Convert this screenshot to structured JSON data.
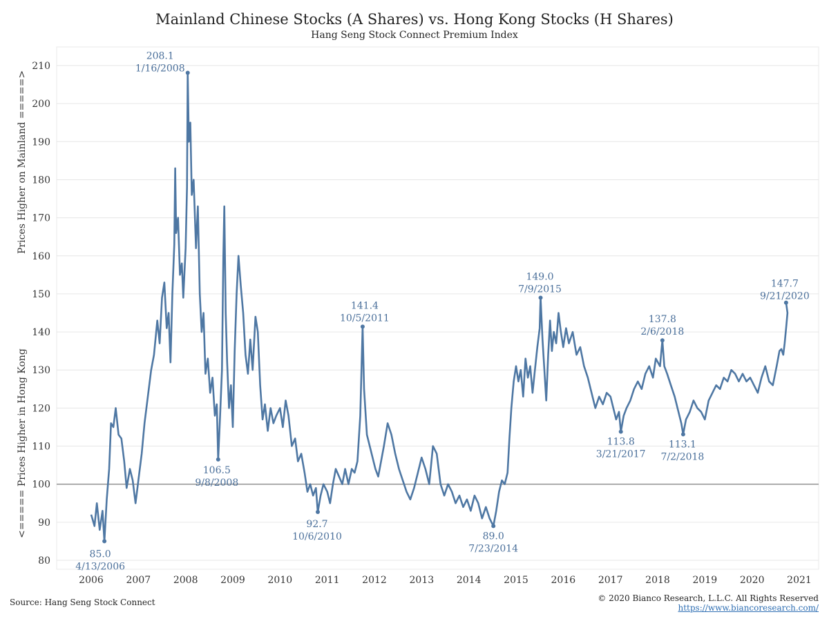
{
  "header": {
    "title": "Mainland Chinese Stocks (A Shares)  vs. Hong Kong Stocks (H Shares)",
    "subtitle": "Hang Seng Stock Connect Premium Index"
  },
  "footer": {
    "source": "Source: Hang Seng Stock Connect",
    "copyright": "© 2020 Bianco Research, L.L.C. All Rights Reserved",
    "url": "https://www.biancoresearch.com/"
  },
  "colors": {
    "series": "#4e77a3",
    "reference_line": "#888888",
    "grid": "#e6e6e6",
    "annotation": "#4a6f9a"
  },
  "chart_data": {
    "type": "line",
    "title": "Mainland Chinese Stocks (A Shares)  vs. Hong Kong Stocks (H Shares)",
    "subtitle": "Hang Seng Stock Connect Premium Index",
    "ylabel_top": "Prices Higher on Mainland =====>",
    "ylabel_bottom": "<===== Prices Higher in Hong Kong",
    "xlim": [
      2005.75,
      2021.3
    ],
    "ylim": [
      78,
      213
    ],
    "x_ticks": [
      2006,
      2007,
      2008,
      2009,
      2010,
      2011,
      2012,
      2013,
      2014,
      2015,
      2016,
      2017,
      2018,
      2019,
      2020,
      2021
    ],
    "y_ticks": [
      80,
      90,
      100,
      110,
      120,
      130,
      140,
      150,
      160,
      170,
      180,
      190,
      200,
      210
    ],
    "grid": "horizontal",
    "reference_line": 100,
    "series": [
      {
        "values": [
          [
            2006.0,
            92
          ],
          [
            2006.07,
            89
          ],
          [
            2006.12,
            95
          ],
          [
            2006.18,
            88
          ],
          [
            2006.24,
            93
          ],
          [
            2006.28,
            85.0
          ],
          [
            2006.33,
            96
          ],
          [
            2006.38,
            104
          ],
          [
            2006.42,
            116
          ],
          [
            2006.47,
            115
          ],
          [
            2006.52,
            120
          ],
          [
            2006.58,
            113
          ],
          [
            2006.64,
            112
          ],
          [
            2006.7,
            106
          ],
          [
            2006.75,
            99
          ],
          [
            2006.82,
            104
          ],
          [
            2006.88,
            101
          ],
          [
            2006.94,
            95
          ],
          [
            2007.0,
            101
          ],
          [
            2007.07,
            108
          ],
          [
            2007.13,
            116
          ],
          [
            2007.2,
            123
          ],
          [
            2007.27,
            130
          ],
          [
            2007.33,
            134
          ],
          [
            2007.4,
            143
          ],
          [
            2007.45,
            137
          ],
          [
            2007.5,
            149
          ],
          [
            2007.55,
            153
          ],
          [
            2007.6,
            141
          ],
          [
            2007.64,
            145
          ],
          [
            2007.68,
            132
          ],
          [
            2007.72,
            150
          ],
          [
            2007.76,
            163
          ],
          [
            2007.78,
            183
          ],
          [
            2007.8,
            166
          ],
          [
            2007.84,
            170
          ],
          [
            2007.88,
            155
          ],
          [
            2007.92,
            158
          ],
          [
            2007.95,
            149
          ],
          [
            2008.0,
            162
          ],
          [
            2008.03,
            178
          ],
          [
            2008.045,
            208.1
          ],
          [
            2008.07,
            190
          ],
          [
            2008.1,
            195
          ],
          [
            2008.13,
            176
          ],
          [
            2008.17,
            180
          ],
          [
            2008.22,
            162
          ],
          [
            2008.26,
            173
          ],
          [
            2008.3,
            150
          ],
          [
            2008.34,
            140
          ],
          [
            2008.38,
            145
          ],
          [
            2008.42,
            129
          ],
          [
            2008.47,
            133
          ],
          [
            2008.52,
            124
          ],
          [
            2008.57,
            128
          ],
          [
            2008.62,
            118
          ],
          [
            2008.66,
            121
          ],
          [
            2008.69,
            106.5
          ],
          [
            2008.73,
            118
          ],
          [
            2008.77,
            130
          ],
          [
            2008.8,
            160
          ],
          [
            2008.82,
            173
          ],
          [
            2008.85,
            145
          ],
          [
            2008.88,
            132
          ],
          [
            2008.92,
            120
          ],
          [
            2008.96,
            126
          ],
          [
            2009.0,
            115
          ],
          [
            2009.04,
            135
          ],
          [
            2009.08,
            150
          ],
          [
            2009.12,
            160
          ],
          [
            2009.17,
            152
          ],
          [
            2009.22,
            145
          ],
          [
            2009.27,
            134
          ],
          [
            2009.32,
            129
          ],
          [
            2009.37,
            138
          ],
          [
            2009.42,
            130
          ],
          [
            2009.48,
            144
          ],
          [
            2009.53,
            140
          ],
          [
            2009.58,
            126
          ],
          [
            2009.63,
            117
          ],
          [
            2009.68,
            121
          ],
          [
            2009.74,
            114
          ],
          [
            2009.8,
            120
          ],
          [
            2009.86,
            116
          ],
          [
            2009.92,
            118
          ],
          [
            2010.0,
            120
          ],
          [
            2010.06,
            115
          ],
          [
            2010.12,
            122
          ],
          [
            2010.18,
            118
          ],
          [
            2010.25,
            110
          ],
          [
            2010.32,
            112
          ],
          [
            2010.38,
            106
          ],
          [
            2010.45,
            108
          ],
          [
            2010.52,
            103
          ],
          [
            2010.58,
            98
          ],
          [
            2010.64,
            100
          ],
          [
            2010.7,
            97
          ],
          [
            2010.76,
            99
          ],
          [
            2010.8,
            92.7
          ],
          [
            2010.86,
            97
          ],
          [
            2010.92,
            100
          ],
          [
            2011.0,
            98
          ],
          [
            2011.06,
            95
          ],
          [
            2011.12,
            100
          ],
          [
            2011.18,
            104
          ],
          [
            2011.25,
            102
          ],
          [
            2011.32,
            100
          ],
          [
            2011.38,
            104
          ],
          [
            2011.45,
            100
          ],
          [
            2011.52,
            104
          ],
          [
            2011.58,
            103
          ],
          [
            2011.64,
            106
          ],
          [
            2011.7,
            118
          ],
          [
            2011.75,
            141.4
          ],
          [
            2011.78,
            125
          ],
          [
            2011.84,
            113
          ],
          [
            2011.9,
            110
          ],
          [
            2011.96,
            107
          ],
          [
            2012.02,
            104
          ],
          [
            2012.08,
            102
          ],
          [
            2012.14,
            106
          ],
          [
            2012.2,
            110
          ],
          [
            2012.28,
            116
          ],
          [
            2012.36,
            113
          ],
          [
            2012.44,
            108
          ],
          [
            2012.52,
            104
          ],
          [
            2012.6,
            101
          ],
          [
            2012.68,
            98
          ],
          [
            2012.76,
            96
          ],
          [
            2012.84,
            99
          ],
          [
            2012.92,
            103
          ],
          [
            2013.0,
            107
          ],
          [
            2013.08,
            104
          ],
          [
            2013.16,
            100
          ],
          [
            2013.24,
            110
          ],
          [
            2013.32,
            108
          ],
          [
            2013.4,
            100
          ],
          [
            2013.48,
            97
          ],
          [
            2013.56,
            100
          ],
          [
            2013.64,
            98
          ],
          [
            2013.72,
            95
          ],
          [
            2013.8,
            97
          ],
          [
            2013.88,
            94
          ],
          [
            2013.96,
            96
          ],
          [
            2014.04,
            93
          ],
          [
            2014.12,
            97
          ],
          [
            2014.2,
            95
          ],
          [
            2014.28,
            91
          ],
          [
            2014.36,
            94
          ],
          [
            2014.44,
            91
          ],
          [
            2014.52,
            89.0
          ],
          [
            2014.58,
            93
          ],
          [
            2014.64,
            98
          ],
          [
            2014.7,
            101
          ],
          [
            2014.76,
            100
          ],
          [
            2014.82,
            103
          ],
          [
            2014.86,
            112
          ],
          [
            2014.9,
            120
          ],
          [
            2014.95,
            127
          ],
          [
            2015.0,
            131
          ],
          [
            2015.05,
            127
          ],
          [
            2015.1,
            130
          ],
          [
            2015.15,
            123
          ],
          [
            2015.2,
            133
          ],
          [
            2015.25,
            128
          ],
          [
            2015.3,
            131
          ],
          [
            2015.35,
            124
          ],
          [
            2015.4,
            130
          ],
          [
            2015.45,
            136
          ],
          [
            2015.5,
            141
          ],
          [
            2015.52,
            149.0
          ],
          [
            2015.56,
            138
          ],
          [
            2015.6,
            130
          ],
          [
            2015.64,
            122
          ],
          [
            2015.68,
            134
          ],
          [
            2015.72,
            143
          ],
          [
            2015.76,
            135
          ],
          [
            2015.8,
            140
          ],
          [
            2015.85,
            137
          ],
          [
            2015.9,
            145
          ],
          [
            2015.95,
            140
          ],
          [
            2016.0,
            136
          ],
          [
            2016.06,
            141
          ],
          [
            2016.12,
            137
          ],
          [
            2016.2,
            140
          ],
          [
            2016.28,
            134
          ],
          [
            2016.36,
            136
          ],
          [
            2016.44,
            131
          ],
          [
            2016.52,
            128
          ],
          [
            2016.6,
            124
          ],
          [
            2016.68,
            120
          ],
          [
            2016.76,
            123
          ],
          [
            2016.84,
            121
          ],
          [
            2016.92,
            124
          ],
          [
            2017.0,
            123
          ],
          [
            2017.06,
            120
          ],
          [
            2017.12,
            117
          ],
          [
            2017.18,
            119
          ],
          [
            2017.22,
            113.8
          ],
          [
            2017.28,
            118
          ],
          [
            2017.34,
            120
          ],
          [
            2017.42,
            122
          ],
          [
            2017.5,
            125
          ],
          [
            2017.58,
            127
          ],
          [
            2017.66,
            125
          ],
          [
            2017.74,
            129
          ],
          [
            2017.82,
            131
          ],
          [
            2017.9,
            128
          ],
          [
            2017.96,
            133
          ],
          [
            2018.05,
            131
          ],
          [
            2018.1,
            137.8
          ],
          [
            2018.14,
            131
          ],
          [
            2018.2,
            129
          ],
          [
            2018.28,
            126
          ],
          [
            2018.36,
            123
          ],
          [
            2018.44,
            119
          ],
          [
            2018.5,
            116
          ],
          [
            2018.54,
            113.1
          ],
          [
            2018.6,
            117
          ],
          [
            2018.68,
            119
          ],
          [
            2018.76,
            122
          ],
          [
            2018.84,
            120
          ],
          [
            2018.92,
            119
          ],
          [
            2019.0,
            117
          ],
          [
            2019.08,
            122
          ],
          [
            2019.16,
            124
          ],
          [
            2019.24,
            126
          ],
          [
            2019.32,
            125
          ],
          [
            2019.4,
            128
          ],
          [
            2019.48,
            127
          ],
          [
            2019.56,
            130
          ],
          [
            2019.64,
            129
          ],
          [
            2019.72,
            127
          ],
          [
            2019.8,
            129
          ],
          [
            2019.88,
            127
          ],
          [
            2019.96,
            128
          ],
          [
            2020.04,
            126
          ],
          [
            2020.12,
            124
          ],
          [
            2020.2,
            128
          ],
          [
            2020.28,
            131
          ],
          [
            2020.36,
            127
          ],
          [
            2020.44,
            126
          ],
          [
            2020.52,
            131
          ],
          [
            2020.58,
            135
          ],
          [
            2020.62,
            135.5
          ],
          [
            2020.66,
            134
          ],
          [
            2020.69,
            137
          ],
          [
            2020.72,
            141
          ],
          [
            2020.75,
            145
          ],
          [
            2020.72,
            147.7
          ]
        ]
      }
    ],
    "annotations": [
      {
        "x": 2006.28,
        "y": 85.0,
        "value": "85.0",
        "date": "4/13/2006"
      },
      {
        "x": 2008.045,
        "y": 208.1,
        "value": "208.1",
        "date": "1/16/2008"
      },
      {
        "x": 2008.69,
        "y": 106.5,
        "value": "106.5",
        "date": "9/8/2008"
      },
      {
        "x": 2010.8,
        "y": 92.7,
        "value": "92.7",
        "date": "10/6/2010"
      },
      {
        "x": 2011.75,
        "y": 141.4,
        "value": "141.4",
        "date": "10/5/2011"
      },
      {
        "x": 2014.52,
        "y": 89.0,
        "value": "89.0",
        "date": "7/23/2014"
      },
      {
        "x": 2015.52,
        "y": 149.0,
        "value": "149.0",
        "date": "7/9/2015"
      },
      {
        "x": 2017.22,
        "y": 113.8,
        "value": "113.8",
        "date": "3/21/2017"
      },
      {
        "x": 2018.1,
        "y": 137.8,
        "value": "137.8",
        "date": "2/6/2018"
      },
      {
        "x": 2018.54,
        "y": 113.1,
        "value": "113.1",
        "date": "7/2/2018"
      },
      {
        "x": 2020.72,
        "y": 147.7,
        "value": "147.7",
        "date": "9/21/2020"
      }
    ]
  }
}
